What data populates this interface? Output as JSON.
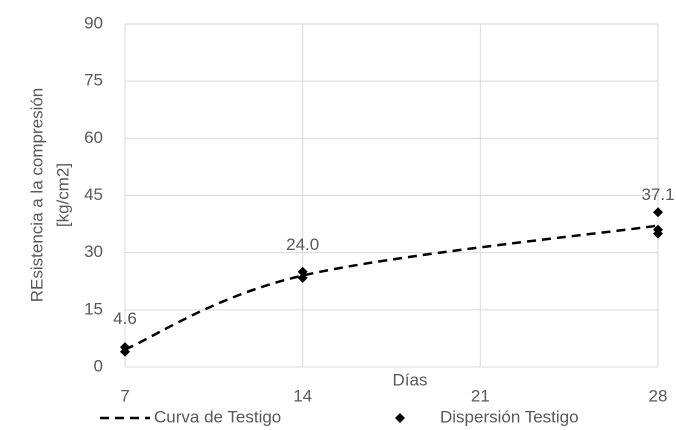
{
  "chart_data": {
    "type": "line_scatter",
    "xlabel": "Días",
    "ylabel": [
      "REsistencia a la compresión",
      "[kg/cm2]"
    ],
    "xlim": [
      7,
      28
    ],
    "xticks": [
      7,
      14,
      21,
      28
    ],
    "ylim": [
      0,
      90
    ],
    "yticks": [
      0,
      15,
      30,
      45,
      60,
      75,
      90
    ],
    "grid": true,
    "legend": "bottom",
    "line": {
      "name": "Curva de Testigo",
      "color": "#000000",
      "x": [
        7,
        14,
        28
      ],
      "values": [
        4.6,
        24.0,
        37.1
      ],
      "value_labels": [
        "4.6",
        "24.0",
        "37.1"
      ]
    },
    "scatter": {
      "name": "Dispersión Testigo",
      "color": "#000000",
      "x": [
        7,
        7,
        14,
        14,
        28,
        28,
        28
      ],
      "values": [
        4.0,
        5.2,
        25.0,
        23.4,
        40.6,
        35.0,
        36.0
      ]
    }
  }
}
